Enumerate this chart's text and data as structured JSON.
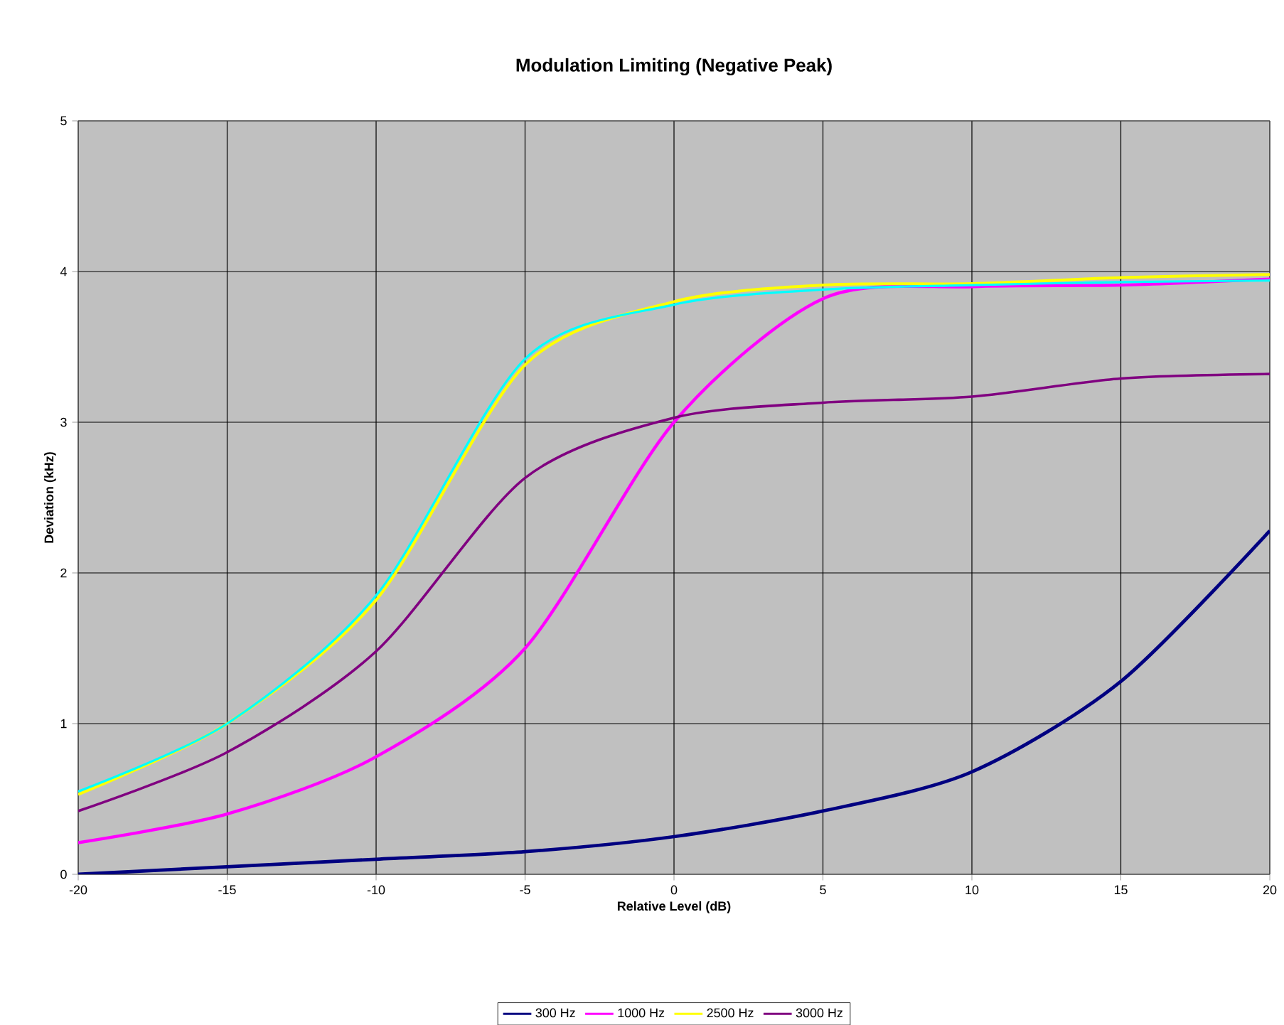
{
  "chart_data": {
    "type": "line",
    "title": "Modulation Limiting (Negative Peak)",
    "xlabel": "Relative Level (dB)",
    "ylabel": "Deviation (kHz)",
    "x": [
      -20,
      -15,
      -10,
      -5,
      0,
      5,
      10,
      15,
      20
    ],
    "series": [
      {
        "name": "300 Hz",
        "color": "#000080",
        "values": [
          0.0,
          0.05,
          0.1,
          0.15,
          0.25,
          0.42,
          0.68,
          1.28,
          2.28
        ]
      },
      {
        "name": "1000 Hz",
        "color": "#ff00ff",
        "values": [
          0.21,
          0.4,
          0.78,
          1.5,
          3.0,
          3.82,
          3.9,
          3.91,
          3.95
        ]
      },
      {
        "name": "2500 Hz",
        "color": "#ffff00",
        "values": [
          0.53,
          1.0,
          1.82,
          3.38,
          3.8,
          3.91,
          3.92,
          3.96,
          3.98
        ]
      },
      {
        "name": "3000 Hz",
        "color": "#800080",
        "values": [
          0.42,
          0.81,
          1.48,
          2.63,
          3.03,
          3.13,
          3.17,
          3.29,
          3.32
        ]
      },
      {
        "color": "#00ffff",
        "values": [
          0.55,
          1.0,
          1.85,
          3.42,
          3.78,
          3.88,
          3.91,
          3.93,
          3.94
        ]
      }
    ],
    "xlim": [
      -20,
      20
    ],
    "ylim": [
      0,
      5
    ],
    "xticks": [
      -20,
      -15,
      -10,
      -5,
      0,
      5,
      10,
      15,
      20
    ],
    "yticks": [
      0,
      1,
      2,
      3,
      4,
      5
    ],
    "grid": true,
    "legend": "bottom",
    "marker": "none",
    "line_style": "solid"
  }
}
